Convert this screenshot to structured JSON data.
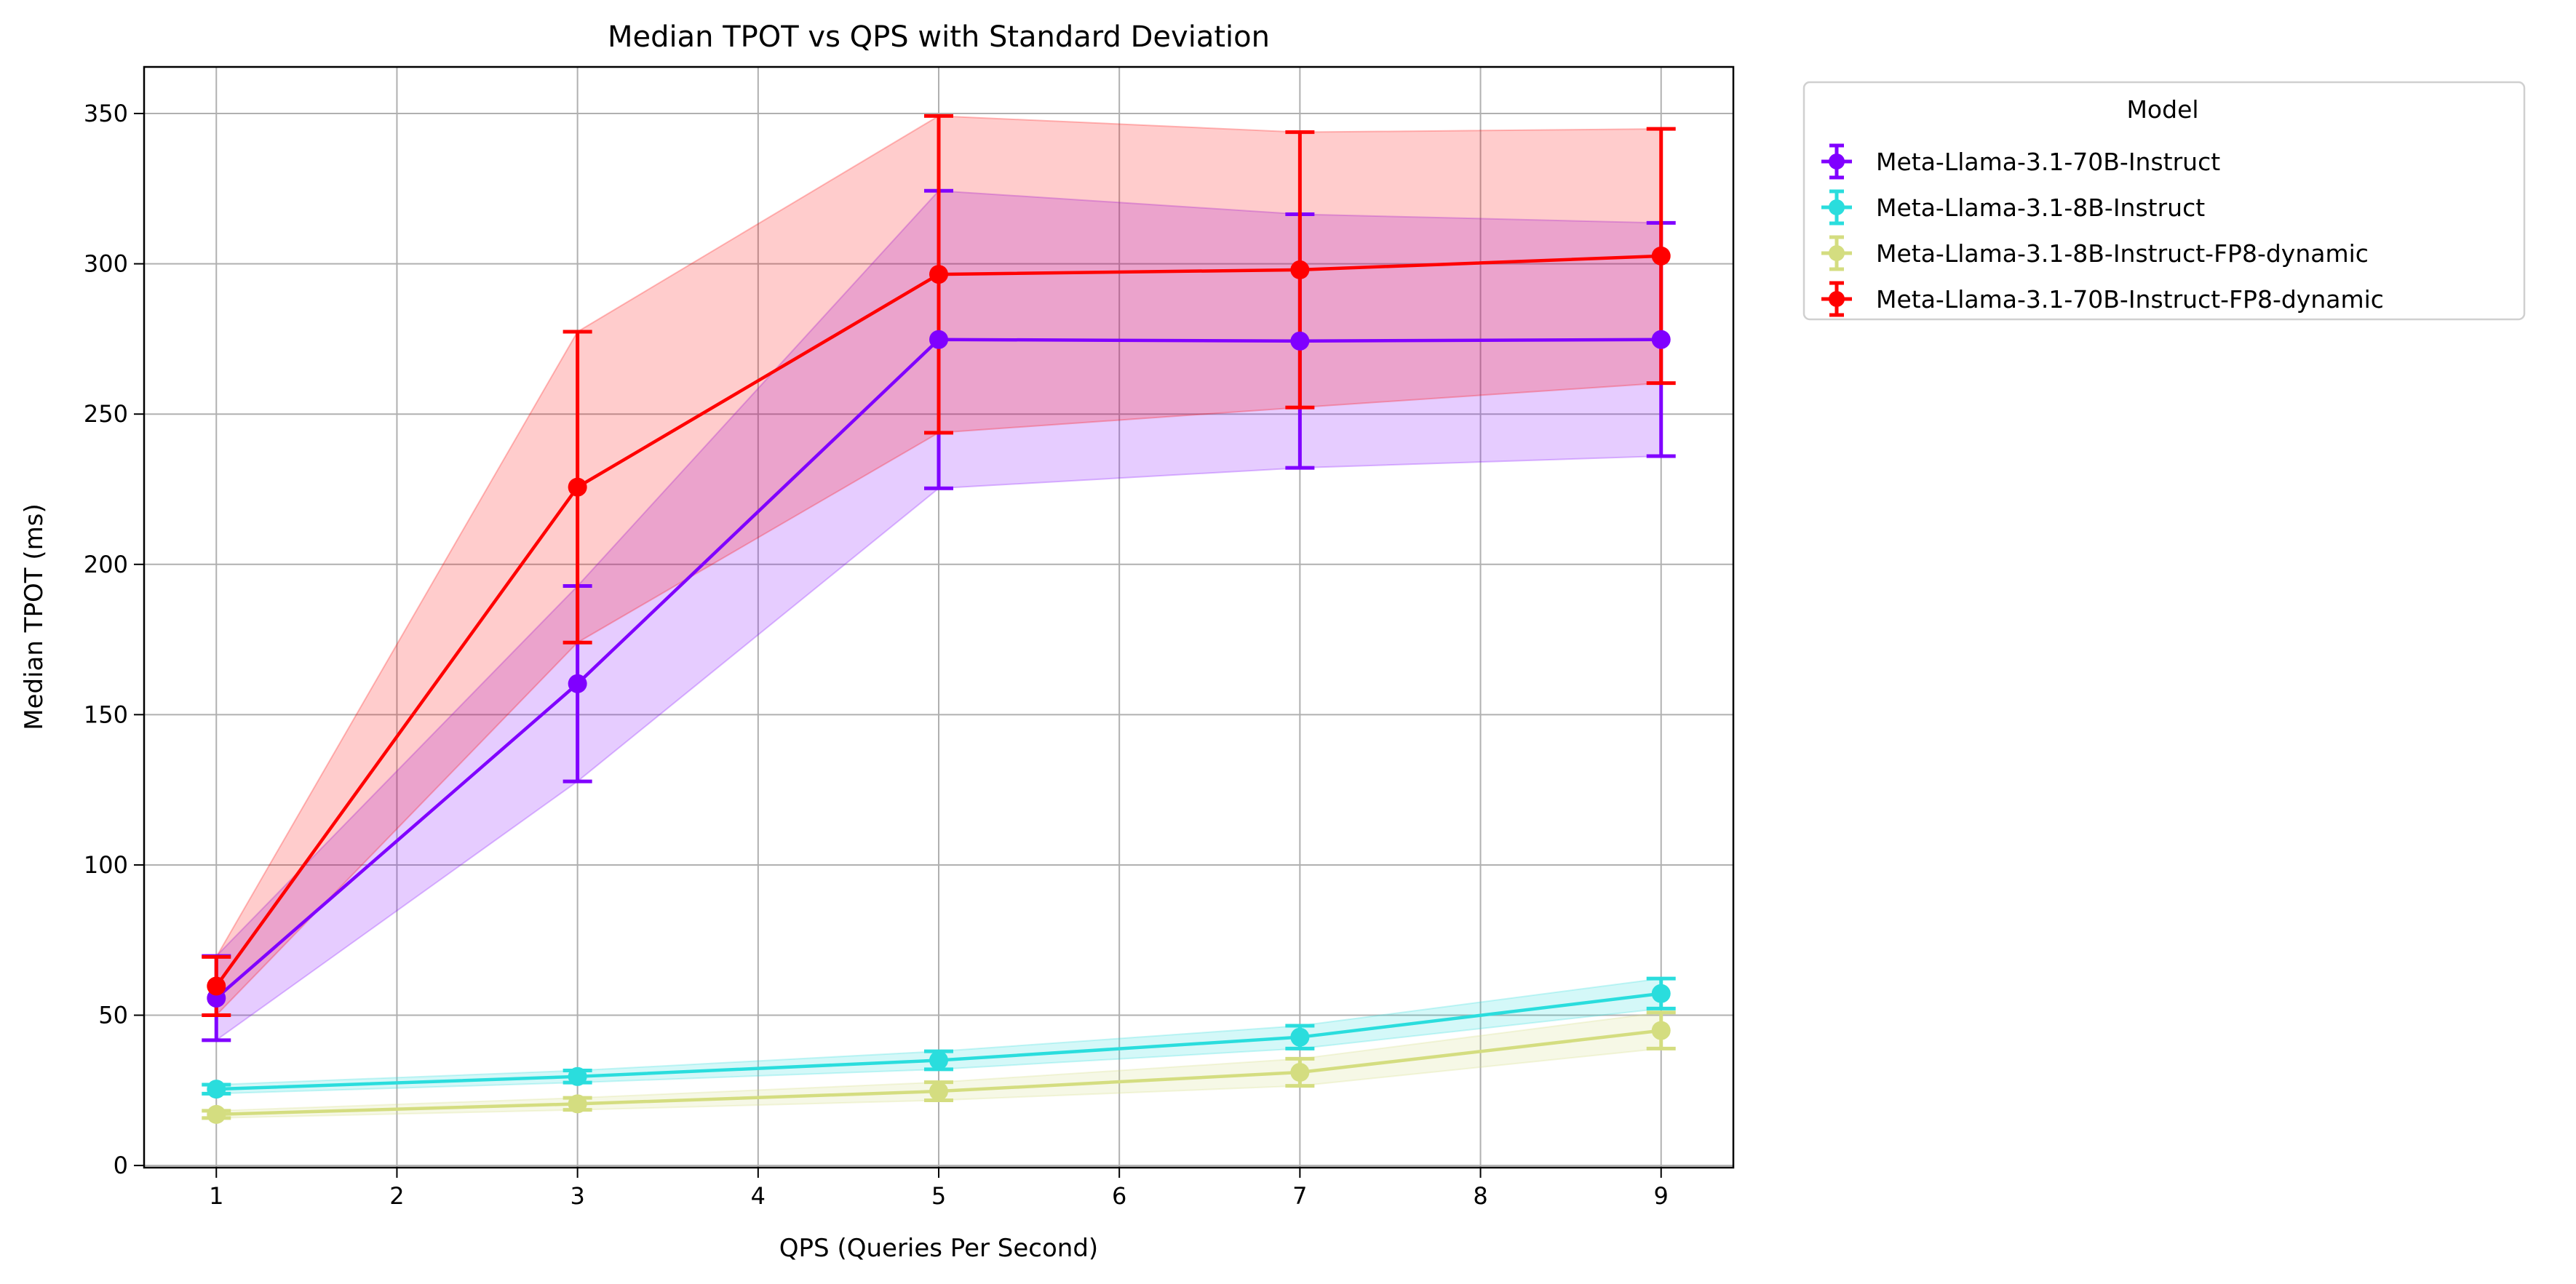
{
  "chart_data": {
    "type": "line",
    "title": "Median TPOT vs QPS with Standard Deviation",
    "xlabel": "QPS (Queries Per Second)",
    "ylabel": "Median TPOT (ms)",
    "xlim": [
      0.6,
      9.4
    ],
    "ylim": [
      -0.7,
      365.5
    ],
    "xticks": [
      1,
      2,
      3,
      4,
      5,
      6,
      7,
      8,
      9
    ],
    "yticks": [
      0,
      50,
      100,
      150,
      200,
      250,
      300,
      350
    ],
    "grid": true,
    "legend": {
      "title": "Model",
      "placement": "outside-top-right"
    },
    "x": [
      1,
      3,
      5,
      7,
      9
    ],
    "series": [
      {
        "name": "Meta-Llama-3.1-70B-Instruct",
        "color": "#8000ff",
        "values": [
          55.7,
          160.3,
          274.8,
          274.3,
          274.8
        ],
        "std": [
          14.0,
          32.5,
          49.5,
          42.2,
          38.8
        ]
      },
      {
        "name": "Meta-Llama-3.1-8B-Instruct",
        "color": "#2adddd",
        "values": [
          25.4,
          29.6,
          35.0,
          42.7,
          57.2
        ],
        "std": [
          1.5,
          2.0,
          3.0,
          3.8,
          5.0
        ]
      },
      {
        "name": "Meta-Llama-3.1-8B-Instruct-FP8-dynamic",
        "color": "#d4dd80",
        "values": [
          17.0,
          20.5,
          24.7,
          31.0,
          44.9
        ],
        "std": [
          1.2,
          2.0,
          3.0,
          4.5,
          6.0
        ]
      },
      {
        "name": "Meta-Llama-3.1-70B-Instruct-FP8-dynamic",
        "color": "#ff0000",
        "values": [
          59.7,
          225.7,
          296.5,
          298.0,
          302.6
        ],
        "std": [
          9.7,
          51.7,
          52.7,
          45.8,
          42.3
        ]
      }
    ]
  }
}
